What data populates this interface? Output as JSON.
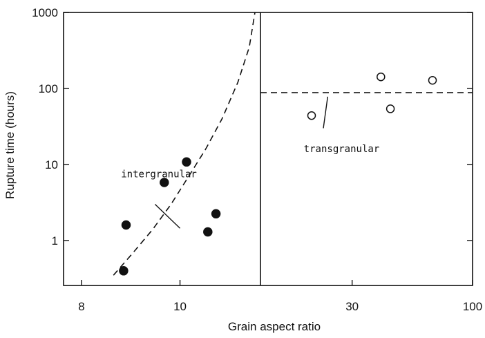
{
  "chart_data": {
    "type": "scatter",
    "title": "",
    "xlabel": "Grain aspect ratio",
    "ylabel": "Rupture time (hours)",
    "y_scale": "log",
    "y_range": [
      0.35,
      1000
    ],
    "y_ticks": [
      {
        "value": 1,
        "label": "1"
      },
      {
        "value": 10,
        "label": "10"
      },
      {
        "value": 100,
        "label": "100"
      },
      {
        "value": 1000,
        "label": "1000"
      }
    ],
    "x_ticks": [
      {
        "value": 8,
        "label": "8"
      },
      {
        "value": 10,
        "label": "10"
      },
      {
        "value": 30,
        "label": "30"
      },
      {
        "value": 100,
        "label": "100"
      }
    ],
    "grid": false,
    "boundary_x": 12,
    "series": [
      {
        "marker": "filled-circle",
        "points": [
          {
            "x": 8.8,
            "y": 0.4
          },
          {
            "x": 8.85,
            "y": 1.6
          },
          {
            "x": 9.65,
            "y": 5.8
          },
          {
            "x": 10.15,
            "y": 10.8
          },
          {
            "x": 10.65,
            "y": 1.3
          },
          {
            "x": 10.85,
            "y": 2.25
          }
        ]
      },
      {
        "marker": "open-circle",
        "points": [
          {
            "x": 20,
            "y": 44
          },
          {
            "x": 40,
            "y": 142
          },
          {
            "x": 44,
            "y": 54
          },
          {
            "x": 67,
            "y": 128
          }
        ]
      }
    ],
    "curves": [
      {
        "style": "dashed",
        "points": [
          {
            "x": 8.6,
            "y": 0.35
          },
          {
            "x": 9.0,
            "y": 0.7
          },
          {
            "x": 9.4,
            "y": 1.4
          },
          {
            "x": 9.8,
            "y": 3.0
          },
          {
            "x": 10.2,
            "y": 7.0
          },
          {
            "x": 10.6,
            "y": 16
          },
          {
            "x": 11.0,
            "y": 40
          },
          {
            "x": 11.4,
            "y": 120
          },
          {
            "x": 11.7,
            "y": 350
          },
          {
            "x": 11.85,
            "y": 1000
          }
        ]
      },
      {
        "style": "dashed",
        "points": [
          {
            "x": 12,
            "y": 88
          },
          {
            "x": 100,
            "y": 88
          }
        ]
      }
    ],
    "annotations": [
      {
        "text": "intergranular",
        "x": 8.75,
        "y": 6.8,
        "leader_from": {
          "x": 9.45,
          "y": 3.0
        },
        "leader_to": {
          "x": 10.0,
          "y": 1.45
        }
      },
      {
        "text": "transgranular",
        "x": 18.5,
        "y": 14.5,
        "leader_from": {
          "x": 22.5,
          "y": 30
        },
        "leader_to": {
          "x": 23.5,
          "y": 78
        }
      }
    ]
  }
}
